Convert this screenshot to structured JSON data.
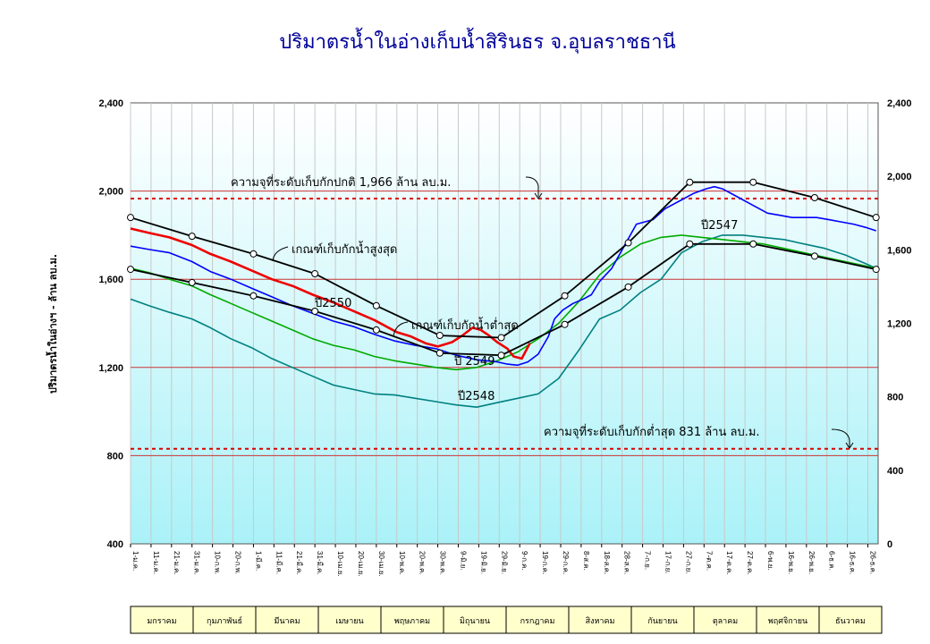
{
  "chart_data": {
    "type": "line",
    "title": "ปริมาตรน้ำในอ่างเก็บน้ำสิรินธร จ.อุบลราชธานี",
    "ylabel": "ปริมาตรน้ำในอ่างฯ - ล้าน ลบ.ม.",
    "ylim": [
      400,
      2400
    ],
    "yticks_left": [
      "400",
      "800",
      "1,200",
      "1,600",
      "2,000",
      "2,400"
    ],
    "y2lim": [
      0,
      2400
    ],
    "yticks_right": [
      "0",
      "400",
      "800",
      "1,200",
      "1,600",
      "2,000",
      "2,400"
    ],
    "grid": true,
    "x_tick_labels": [
      "1-ม.ค.",
      "11-ม.ค.",
      "21-ม.ค.",
      "31-ม.ค.",
      "10-ก.พ.",
      "20-ก.พ.",
      "1-มี.ค.",
      "11-มี.ค.",
      "21-มี.ค.",
      "31-มี.ค.",
      "10-เม.ย.",
      "20-เม.ย.",
      "30-เม.ย.",
      "10-พ.ค.",
      "20-พ.ค.",
      "30-พ.ค.",
      "9-มิ.ย.",
      "19-มิ.ย.",
      "29-มิ.ย.",
      "9-ก.ค.",
      "19-ก.ค.",
      "29-ก.ค.",
      "8-ส.ค.",
      "18-ส.ค.",
      "28-ส.ค.",
      "7-ก.ย.",
      "17-ก.ย.",
      "27-ก.ย.",
      "7-ต.ค.",
      "17-ต.ค.",
      "27-ต.ค.",
      "6-พ.ย.",
      "16-พ.ย.",
      "26-พ.ย.",
      "6-ธ.ค.",
      "16-ธ.ค.",
      "26-ธ.ค."
    ],
    "months": [
      "มกราคม",
      "กุมภาพันธ์",
      "มีนาคม",
      "เมษายน",
      "พฤษภาคม",
      "มิถุนายน",
      "กรกฎาคม",
      "สิงหาคม",
      "กันยายน",
      "ตุลาคม",
      "พฤศจิกายน",
      "ธันวาคม"
    ],
    "reference_lines": [
      {
        "label": "ความจุที่ระดับเก็บกักปกติ 1,966 ล้าน ลบ.ม.",
        "value": 1966,
        "color": "#dd0000"
      },
      {
        "label": "ความจุที่ระดับเก็บกักต่ำสุด 831 ล้าน ลบ.ม.",
        "value": 831,
        "color": "#dd0000"
      }
    ],
    "series": [
      {
        "name": "เกณฑ์เก็บกักน้ำสูงสุด",
        "color": "#000000",
        "marker": "circle",
        "x": [
          1,
          31,
          61,
          91,
          121,
          152,
          182,
          213,
          244,
          274,
          305,
          335,
          365
        ],
        "y": [
          1880,
          1795,
          1715,
          1625,
          1480,
          1345,
          1335,
          1525,
          1765,
          2040,
          2040,
          1970,
          1880
        ]
      },
      {
        "name": "เกณฑ์เก็บกักน้ำต่ำสุด",
        "color": "#000000",
        "marker": "circle",
        "x": [
          1,
          31,
          61,
          91,
          121,
          152,
          182,
          213,
          244,
          274,
          305,
          335,
          365
        ],
        "y": [
          1645,
          1585,
          1525,
          1455,
          1370,
          1265,
          1255,
          1395,
          1565,
          1760,
          1760,
          1705,
          1645
        ]
      },
      {
        "name": "ปี2550",
        "color": "#ee0000",
        "x": [
          1,
          10,
          20,
          31,
          40,
          50,
          60,
          70,
          80,
          90,
          100,
          110,
          120,
          126,
          131,
          138,
          145,
          151,
          158,
          163,
          168,
          172,
          176,
          180,
          185,
          188,
          192,
          196
        ],
        "y": [
          1830,
          1810,
          1790,
          1755,
          1715,
          1680,
          1640,
          1600,
          1570,
          1530,
          1495,
          1455,
          1415,
          1385,
          1360,
          1340,
          1310,
          1295,
          1315,
          1345,
          1380,
          1370,
          1345,
          1315,
          1285,
          1250,
          1240,
          1310
        ]
      },
      {
        "name": "ปี 2549",
        "color": "#0000ff",
        "x": [
          1,
          10,
          20,
          31,
          40,
          50,
          60,
          70,
          80,
          90,
          100,
          110,
          120,
          130,
          140,
          150,
          160,
          170,
          180,
          185,
          190,
          195,
          200,
          205,
          208,
          212,
          217,
          222,
          226,
          230,
          236,
          242,
          248,
          256,
          262,
          270,
          276,
          282,
          286,
          290,
          296,
          302,
          306,
          312,
          318,
          324,
          330,
          336,
          342,
          348,
          354,
          360,
          365
        ],
        "y": [
          1750,
          1735,
          1720,
          1680,
          1635,
          1600,
          1560,
          1520,
          1480,
          1445,
          1410,
          1385,
          1350,
          1320,
          1300,
          1285,
          1255,
          1235,
          1225,
          1215,
          1210,
          1225,
          1260,
          1340,
          1420,
          1460,
          1490,
          1510,
          1530,
          1590,
          1650,
          1750,
          1850,
          1870,
          1920,
          1960,
          1990,
          2010,
          2020,
          2010,
          1980,
          1950,
          1930,
          1900,
          1890,
          1880,
          1880,
          1880,
          1870,
          1860,
          1850,
          1835,
          1820
        ]
      },
      {
        "name": "ปี2548",
        "color": "#008080",
        "x": [
          1,
          10,
          20,
          31,
          40,
          50,
          60,
          70,
          80,
          90,
          100,
          110,
          120,
          130,
          140,
          150,
          160,
          170,
          180,
          190,
          200,
          210,
          220,
          230,
          240,
          250,
          260,
          270,
          280,
          290,
          300,
          310,
          320,
          330,
          340,
          350,
          360,
          365
        ],
        "y": [
          1510,
          1480,
          1450,
          1420,
          1380,
          1330,
          1290,
          1240,
          1200,
          1160,
          1120,
          1100,
          1080,
          1075,
          1060,
          1045,
          1030,
          1020,
          1040,
          1060,
          1080,
          1150,
          1280,
          1420,
          1460,
          1540,
          1600,
          1720,
          1770,
          1800,
          1800,
          1790,
          1780,
          1760,
          1740,
          1710,
          1670,
          1650
        ]
      },
      {
        "name": "ปี2547",
        "color": "#00aa00",
        "x": [
          1,
          10,
          20,
          31,
          40,
          50,
          60,
          70,
          80,
          90,
          100,
          110,
          120,
          130,
          140,
          150,
          160,
          170,
          180,
          190,
          200,
          210,
          220,
          230,
          240,
          250,
          260,
          270,
          280,
          290,
          300,
          310,
          320,
          330,
          340,
          350,
          360,
          365
        ],
        "y": [
          1650,
          1630,
          1600,
          1570,
          1530,
          1490,
          1450,
          1410,
          1370,
          1330,
          1300,
          1280,
          1250,
          1230,
          1215,
          1200,
          1190,
          1200,
          1230,
          1270,
          1330,
          1400,
          1500,
          1620,
          1700,
          1760,
          1790,
          1800,
          1790,
          1780,
          1770,
          1760,
          1740,
          1720,
          1700,
          1680,
          1660,
          1650
        ]
      }
    ]
  },
  "labels": {
    "upper_rule": "เกณฑ์เก็บกักน้ำสูงสุด",
    "lower_rule": "เกณฑ์เก็บกักน้ำต่ำสุด",
    "y2550": "ปี2550",
    "y2549": "ปี 2549",
    "y2548": "ปี2548",
    "y2547": "ปี2547"
  }
}
